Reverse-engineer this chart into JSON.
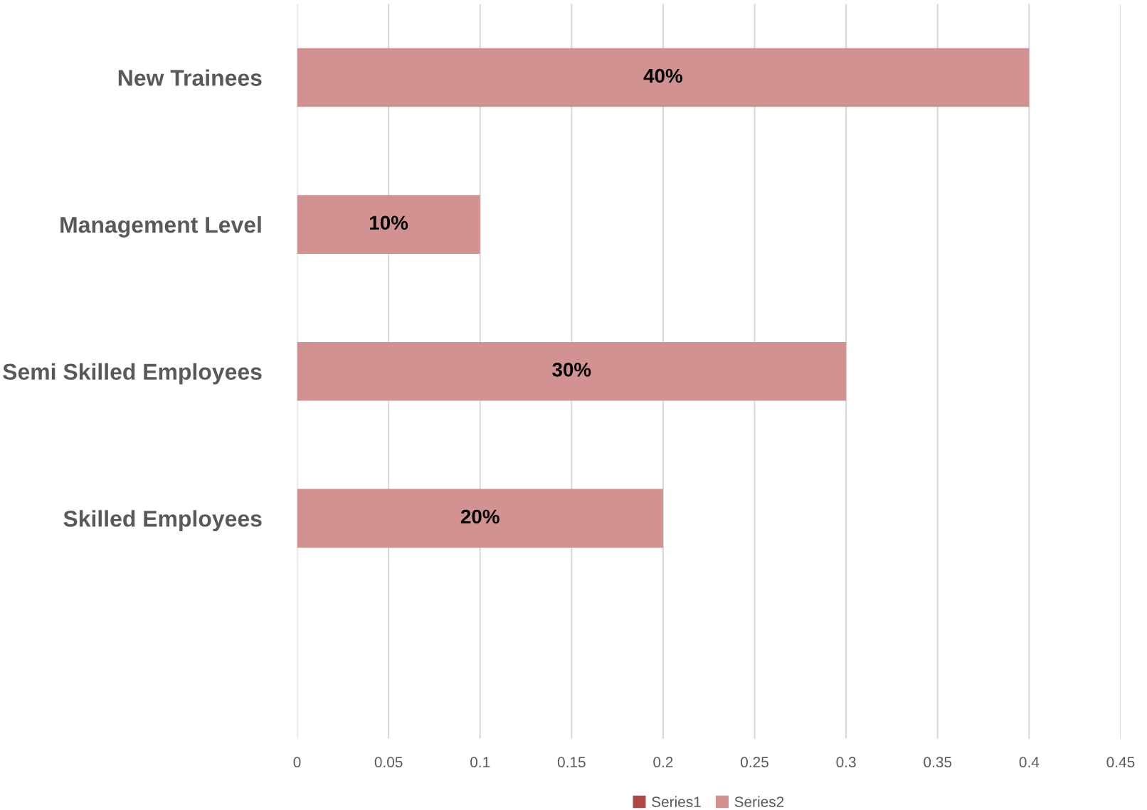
{
  "chart_data": {
    "type": "bar",
    "orientation": "horizontal",
    "categories": [
      "New Trainees",
      "Management Level",
      "Semi Skilled Employees",
      "Skilled Employees",
      null
    ],
    "series": [
      {
        "name": "Series1",
        "color": "#b04848",
        "values": [
          null,
          null,
          null,
          null,
          null
        ]
      },
      {
        "name": "Series2",
        "color": "#d29292",
        "values": [
          0.4,
          0.1,
          0.3,
          0.2,
          null
        ],
        "value_labels": [
          "40%",
          "10%",
          "30%",
          "20%",
          null
        ]
      }
    ],
    "xlim": [
      0,
      0.45
    ],
    "xticks": [
      0,
      0.05,
      0.1,
      0.15,
      0.2,
      0.25,
      0.3,
      0.35,
      0.4,
      0.45
    ],
    "grid": "x",
    "legend": "bottom"
  }
}
